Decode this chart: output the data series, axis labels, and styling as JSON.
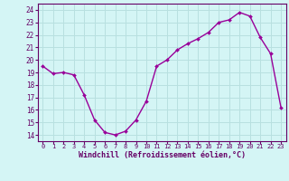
{
  "hours": [
    0,
    1,
    2,
    3,
    4,
    5,
    6,
    7,
    8,
    9,
    10,
    11,
    12,
    13,
    14,
    15,
    16,
    17,
    18,
    19,
    20,
    21,
    22,
    23
  ],
  "values": [
    19.5,
    18.9,
    19.0,
    18.8,
    17.2,
    15.2,
    14.2,
    14.0,
    14.3,
    15.2,
    16.7,
    19.5,
    20.0,
    20.8,
    21.3,
    21.7,
    22.2,
    23.0,
    23.2,
    23.8,
    23.5,
    21.8,
    20.5,
    16.2
  ],
  "ylim": [
    13.5,
    24.5
  ],
  "yticks": [
    14,
    15,
    16,
    17,
    18,
    19,
    20,
    21,
    22,
    23,
    24
  ],
  "xticks": [
    0,
    1,
    2,
    3,
    4,
    5,
    6,
    7,
    8,
    9,
    10,
    11,
    12,
    13,
    14,
    15,
    16,
    17,
    18,
    19,
    20,
    21,
    22,
    23
  ],
  "line_color": "#990099",
  "marker_color": "#990099",
  "bg_color": "#d4f5f5",
  "grid_color": "#b8e0e0",
  "xlabel": "Windchill (Refroidissement éolien,°C)",
  "xlabel_color": "#660066",
  "tick_color": "#660066",
  "axis_line_color": "#660066",
  "marker": "D",
  "marker_size": 2.0,
  "line_width": 1.0
}
